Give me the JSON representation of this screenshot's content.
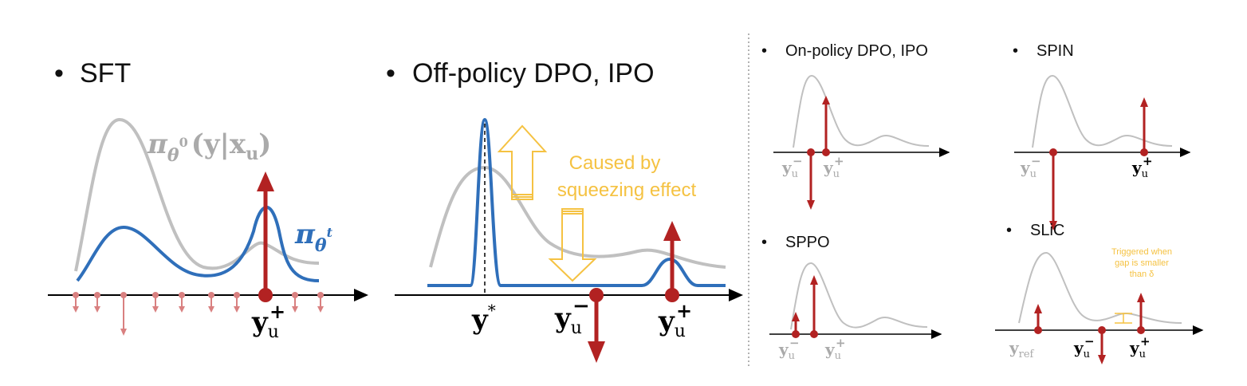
{
  "colors": {
    "curve_old": "#c0c0c0",
    "curve_new": "#2f6fba",
    "arrow": "#b22222",
    "arrow_faint": "#d98080",
    "annotation": "#f5c242",
    "label_grey": "#aaaaaa",
    "axis": "#000000"
  },
  "panels": {
    "sft": {
      "title": "SFT",
      "old_policy_label": "π_{θ⁰}(y|x_u)",
      "old_policy_main": "π",
      "old_policy_sub": "θ",
      "old_policy_sup": "0",
      "old_policy_args": "(y|x",
      "old_policy_args_sub": "u",
      "old_policy_close": ")",
      "new_policy_main": "π",
      "new_policy_sub": "θ",
      "new_policy_sup": "t",
      "yplus_main": "y",
      "yplus_sub": "u",
      "yplus_sup": "+"
    },
    "offpolicy": {
      "title": "Off-policy DPO, IPO",
      "note_line1": "Caused by",
      "note_line2": "squeezing effect",
      "ystar_main": "y",
      "ystar_sup": "*",
      "yminus_main": "y",
      "yminus_sub": "u",
      "yminus_sup": "−",
      "yplus_main": "y",
      "yplus_sub": "u",
      "yplus_sup": "+"
    },
    "onpolicy": {
      "title": "On-policy DPO, IPO",
      "yminus_main": "y",
      "yminus_sub": "u",
      "yminus_sup": "−",
      "yplus_main": "y",
      "yplus_sub": "u",
      "yplus_sup": "+"
    },
    "spin": {
      "title": "SPIN",
      "yminus_main": "y",
      "yminus_sub": "u",
      "yminus_sup": "−",
      "yplus_main": "y",
      "yplus_sub": "u",
      "yplus_sup": "+"
    },
    "sppo": {
      "title": "SPPO",
      "yminus_main": "y",
      "yminus_sub": "u",
      "yminus_sup": "−",
      "yplus_main": "y",
      "yplus_sub": "u",
      "yplus_sup": "+"
    },
    "slic": {
      "title": "SLiC",
      "note_line1": "Triggered when",
      "note_line2": "gap is smaller",
      "note_line3": "than δ",
      "yref_main": "y",
      "yref_sub": "ref",
      "yminus_main": "y",
      "yminus_sub": "u",
      "yminus_sup": "−",
      "yplus_main": "y",
      "yplus_sub": "u",
      "yplus_sup": "+"
    }
  },
  "bullet": "•"
}
